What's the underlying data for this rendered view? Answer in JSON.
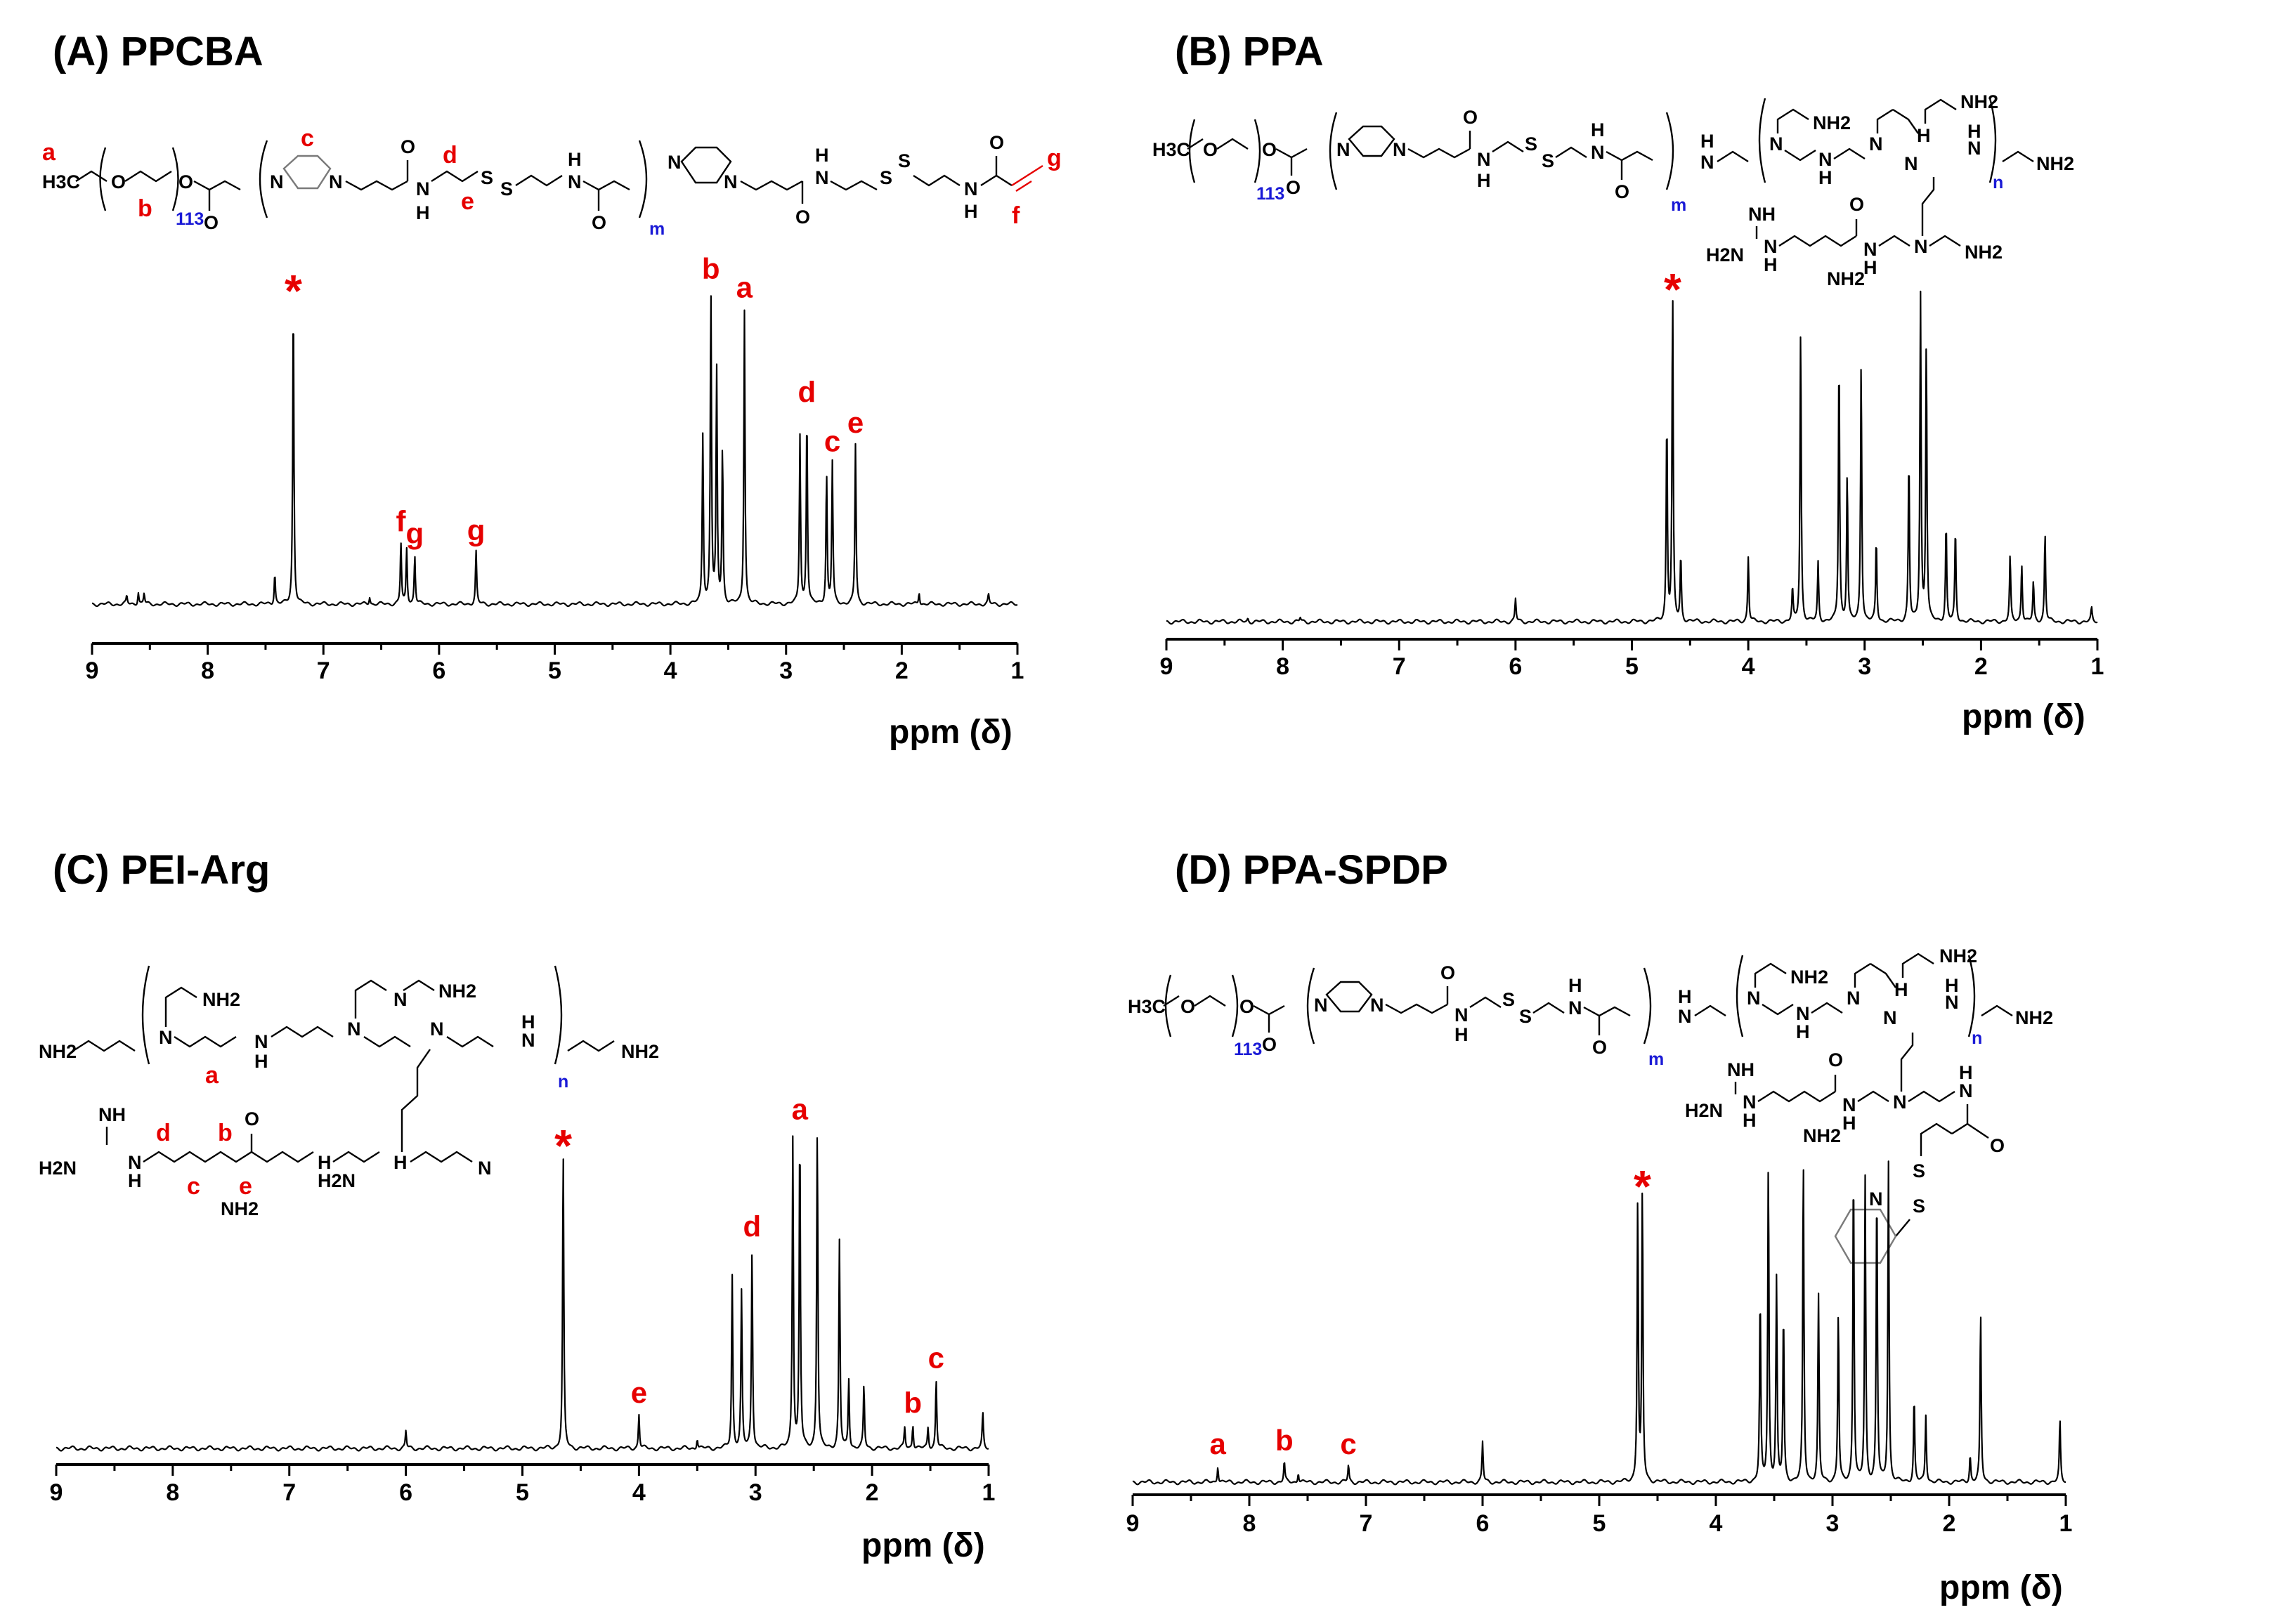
{
  "figure_type": "1H NMR spectra with structural formulas",
  "colors": {
    "assignment": "#e60000",
    "subscript": "#1a1ad6",
    "spectrum": "#000000"
  },
  "chart_data": [
    {
      "type": "line",
      "title": "(A) PPCBA",
      "xlabel": "ppm (δ)",
      "ylabel": "",
      "xlim": [
        9,
        1
      ],
      "x_reversed": true,
      "xticks": [
        "9",
        "8",
        "7",
        "6",
        "5",
        "4",
        "3",
        "2",
        "1"
      ],
      "structure": {
        "atoms": [
          "H3C",
          "O",
          "O",
          "O",
          "N",
          "N",
          "O",
          "N",
          "H",
          "S",
          "S",
          "N",
          "H",
          "O",
          "N",
          "N",
          "O",
          "N",
          "H",
          "S",
          "S",
          "N",
          "H",
          "O"
        ],
        "labels": [
          "a",
          "b",
          "c",
          "d",
          "e",
          "f",
          "g"
        ],
        "subscripts": [
          "113",
          "m"
        ]
      },
      "peaks": [
        {
          "ppm": 8.7,
          "height": 0.025
        },
        {
          "ppm": 8.6,
          "height": 0.04
        },
        {
          "ppm": 8.55,
          "height": 0.035
        },
        {
          "ppm": 7.42,
          "height": 0.1
        },
        {
          "ppm": 7.26,
          "height": 1.0,
          "label": "*"
        },
        {
          "ppm": 6.6,
          "height": 0.025
        },
        {
          "ppm": 6.33,
          "height": 0.2,
          "label": "f"
        },
        {
          "ppm": 6.28,
          "height": 0.18
        },
        {
          "ppm": 6.21,
          "height": 0.16,
          "label": "g"
        },
        {
          "ppm": 5.68,
          "height": 0.17,
          "label": "g"
        },
        {
          "ppm": 3.72,
          "height": 0.55
        },
        {
          "ppm": 3.65,
          "height": 1.02,
          "label": "b"
        },
        {
          "ppm": 3.6,
          "height": 0.75
        },
        {
          "ppm": 3.55,
          "height": 0.5
        },
        {
          "ppm": 3.36,
          "height": 0.96,
          "label": "a"
        },
        {
          "ppm": 2.88,
          "height": 0.55
        },
        {
          "ppm": 2.82,
          "height": 0.62,
          "label": "d"
        },
        {
          "ppm": 2.65,
          "height": 0.42
        },
        {
          "ppm": 2.6,
          "height": 0.46,
          "label": "c"
        },
        {
          "ppm": 2.4,
          "height": 0.52,
          "label": "e"
        },
        {
          "ppm": 1.85,
          "height": 0.04
        },
        {
          "ppm": 1.25,
          "height": 0.03
        }
      ],
      "annotations": [
        "*",
        "b",
        "a",
        "d",
        "c",
        "e",
        "f",
        "g",
        "g"
      ]
    },
    {
      "type": "line",
      "title": "(B) PPA",
      "xlabel": "ppm (δ)",
      "ylabel": "",
      "xlim": [
        9,
        1
      ],
      "x_reversed": true,
      "xticks": [
        "9",
        "8",
        "7",
        "6",
        "5",
        "4",
        "3",
        "2",
        "1"
      ],
      "structure": {
        "atoms": [
          "H3C",
          "O",
          "O",
          "O",
          "N",
          "N",
          "O",
          "N",
          "H",
          "S",
          "S",
          "N",
          "H",
          "O",
          "N",
          "H",
          "N",
          "NH2",
          "N",
          "H",
          "N",
          "N",
          "H",
          "NH2",
          "N",
          "H",
          "NH2",
          "NH",
          "H2N",
          "N",
          "H",
          "O",
          "N",
          "H",
          "N",
          "NH2",
          "NH2"
        ],
        "subscripts": [
          "113",
          "m",
          "n"
        ]
      },
      "peaks": [
        {
          "ppm": 8.3,
          "height": 0.01
        },
        {
          "ppm": 7.85,
          "height": 0.012
        },
        {
          "ppm": 6.0,
          "height": 0.07
        },
        {
          "ppm": 4.7,
          "height": 0.62
        },
        {
          "ppm": 4.65,
          "height": 1.0,
          "label": "*"
        },
        {
          "ppm": 4.58,
          "height": 0.2
        },
        {
          "ppm": 4.0,
          "height": 0.2
        },
        {
          "ppm": 3.62,
          "height": 0.1
        },
        {
          "ppm": 3.55,
          "height": 0.9
        },
        {
          "ppm": 3.4,
          "height": 0.18
        },
        {
          "ppm": 3.22,
          "height": 0.82
        },
        {
          "ppm": 3.15,
          "height": 0.45
        },
        {
          "ppm": 3.03,
          "height": 0.8
        },
        {
          "ppm": 2.9,
          "height": 0.25
        },
        {
          "ppm": 2.62,
          "height": 0.5
        },
        {
          "ppm": 2.52,
          "height": 1.0
        },
        {
          "ppm": 2.47,
          "height": 0.85
        },
        {
          "ppm": 2.3,
          "height": 0.3
        },
        {
          "ppm": 2.22,
          "height": 0.28
        },
        {
          "ppm": 1.75,
          "height": 0.2
        },
        {
          "ppm": 1.65,
          "height": 0.18
        },
        {
          "ppm": 1.55,
          "height": 0.12
        },
        {
          "ppm": 1.45,
          "height": 0.27
        },
        {
          "ppm": 1.05,
          "height": 0.04
        }
      ],
      "annotations": [
        "*"
      ]
    },
    {
      "type": "line",
      "title": "(C) PEI-Arg",
      "xlabel": "ppm (δ)",
      "ylabel": "",
      "xlim": [
        9,
        1
      ],
      "x_reversed": true,
      "xticks": [
        "9",
        "8",
        "7",
        "6",
        "5",
        "4",
        "3",
        "2",
        "1"
      ],
      "structure": {
        "atoms": [
          "NH2",
          "N",
          "H",
          "N",
          "NH2",
          "N",
          "H",
          "H2N",
          "N",
          "H",
          "N",
          "NH2",
          "NH",
          "H2N",
          "N",
          "H",
          "NH2",
          "O",
          "N",
          "H",
          "N",
          "NH2"
        ],
        "labels": [
          "a",
          "b",
          "c",
          "d",
          "e"
        ],
        "subscripts": [
          "n"
        ]
      },
      "peaks": [
        {
          "ppm": 6.0,
          "height": 0.05
        },
        {
          "ppm": 4.65,
          "height": 0.86,
          "label": "*"
        },
        {
          "ppm": 4.0,
          "height": 0.1,
          "label": "e"
        },
        {
          "ppm": 3.5,
          "height": 0.03
        },
        {
          "ppm": 3.2,
          "height": 0.5
        },
        {
          "ppm": 3.12,
          "height": 0.45
        },
        {
          "ppm": 3.03,
          "height": 0.58,
          "label": "d"
        },
        {
          "ppm": 2.68,
          "height": 0.9
        },
        {
          "ppm": 2.62,
          "height": 0.92,
          "label": "a"
        },
        {
          "ppm": 2.47,
          "height": 0.93
        },
        {
          "ppm": 2.28,
          "height": 0.6
        },
        {
          "ppm": 2.2,
          "height": 0.2
        },
        {
          "ppm": 2.07,
          "height": 0.18
        },
        {
          "ppm": 1.72,
          "height": 0.06
        },
        {
          "ppm": 1.65,
          "height": 0.07,
          "label": "b"
        },
        {
          "ppm": 1.52,
          "height": 0.06
        },
        {
          "ppm": 1.45,
          "height": 0.2,
          "label": "c"
        },
        {
          "ppm": 1.05,
          "height": 0.1
        }
      ],
      "annotations": [
        "*",
        "a",
        "d",
        "e",
        "b",
        "c"
      ]
    },
    {
      "type": "line",
      "title": "(D) PPA-SPDP",
      "xlabel": "ppm (δ)",
      "ylabel": "",
      "xlim": [
        9,
        1
      ],
      "x_reversed": true,
      "xticks": [
        "9",
        "8",
        "7",
        "6",
        "5",
        "4",
        "3",
        "2",
        "1"
      ],
      "structure": {
        "atoms": [
          "H3C",
          "O",
          "O",
          "O",
          "N",
          "N",
          "O",
          "N",
          "H",
          "S",
          "S",
          "N",
          "H",
          "O",
          "N",
          "H",
          "N",
          "NH2",
          "N",
          "H",
          "N",
          "N",
          "H",
          "NH2",
          "N",
          "H",
          "NH2",
          "NH",
          "H2N",
          "N",
          "H",
          "NH2",
          "O",
          "N",
          "H",
          "N",
          "N",
          "H",
          "O",
          "S",
          "S",
          "N"
        ],
        "labels": [
          "a",
          "b",
          "c"
        ],
        "subscripts": [
          "113",
          "m",
          "n"
        ]
      },
      "peaks": [
        {
          "ppm": 8.27,
          "height": 0.05,
          "label": "a"
        },
        {
          "ppm": 7.7,
          "height": 0.06,
          "label": "b"
        },
        {
          "ppm": 7.58,
          "height": 0.03
        },
        {
          "ppm": 7.15,
          "height": 0.05,
          "label": "c"
        },
        {
          "ppm": 6.0,
          "height": 0.12
        },
        {
          "ppm": 4.67,
          "height": 0.84
        },
        {
          "ppm": 4.63,
          "height": 0.86,
          "label": "*"
        },
        {
          "ppm": 3.62,
          "height": 0.55
        },
        {
          "ppm": 3.55,
          "height": 0.94
        },
        {
          "ppm": 3.48,
          "height": 0.6
        },
        {
          "ppm": 3.42,
          "height": 0.5
        },
        {
          "ppm": 3.25,
          "height": 0.95
        },
        {
          "ppm": 3.12,
          "height": 0.55
        },
        {
          "ppm": 2.95,
          "height": 0.5
        },
        {
          "ppm": 2.82,
          "height": 0.95
        },
        {
          "ppm": 2.72,
          "height": 0.9
        },
        {
          "ppm": 2.62,
          "height": 0.88
        },
        {
          "ppm": 2.52,
          "height": 0.95
        },
        {
          "ppm": 2.3,
          "height": 0.25
        },
        {
          "ppm": 2.2,
          "height": 0.2
        },
        {
          "ppm": 1.82,
          "height": 0.08
        },
        {
          "ppm": 1.73,
          "height": 0.5
        },
        {
          "ppm": 1.05,
          "height": 0.18
        }
      ],
      "annotations": [
        "*",
        "a",
        "b",
        "c"
      ]
    }
  ]
}
